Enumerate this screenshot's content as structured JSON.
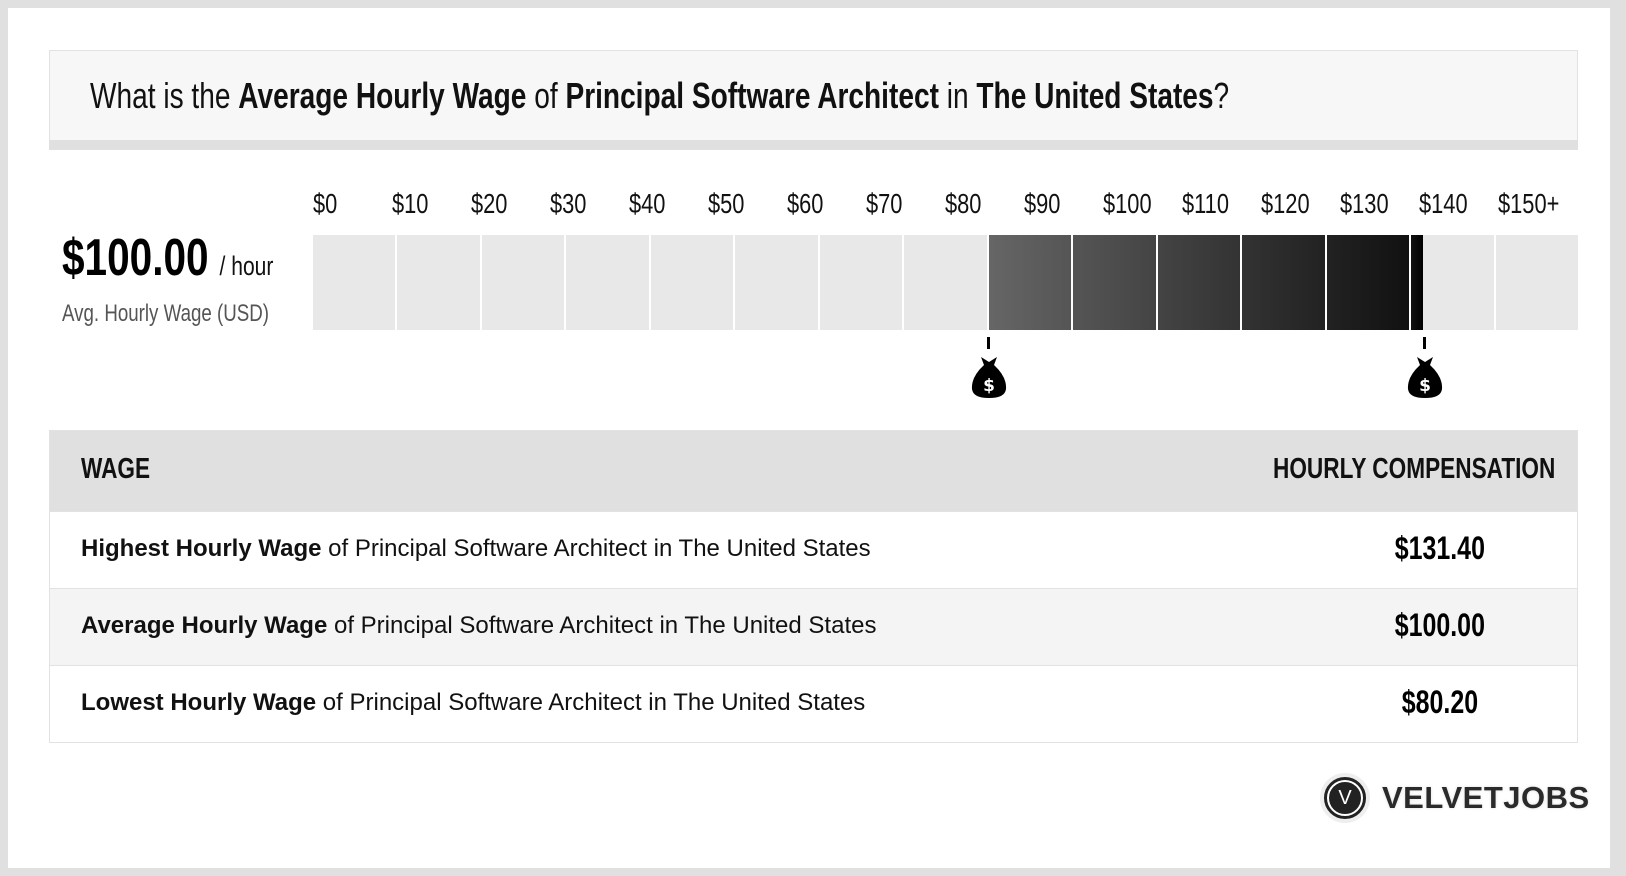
{
  "header": {
    "parts": [
      {
        "text": "What is the ",
        "bold": false
      },
      {
        "text": "Average Hourly Wage",
        "bold": true
      },
      {
        "text": " of ",
        "bold": false
      },
      {
        "text": "Principal Software Architect",
        "bold": true
      },
      {
        "text": " in ",
        "bold": false
      },
      {
        "text": "The United States",
        "bold": true
      },
      {
        "text": "?",
        "bold": false
      }
    ]
  },
  "summary": {
    "value": "$100.00",
    "unit": "/ hour",
    "label": "Avg. Hourly Wage (USD)"
  },
  "chart_data": {
    "type": "bar",
    "tick_labels": [
      "$0",
      "$10",
      "$20",
      "$30",
      "$40",
      "$50",
      "$60",
      "$70",
      "$80",
      "$90",
      "$100",
      "$110",
      "$120",
      "$130",
      "$140",
      "$150+"
    ],
    "range": [
      0,
      150
    ],
    "segment_size": 10,
    "low": 80.2,
    "average": 100.0,
    "high": 131.4,
    "colors": {
      "empty": "#e8e8e8",
      "fill_start": "#666666",
      "fill_end": "#000000"
    },
    "markers": [
      {
        "icon": "money-bag-icon",
        "value": 80.2
      },
      {
        "icon": "money-bag-icon",
        "value": 131.4
      }
    ]
  },
  "table": {
    "headers": [
      "WAGE",
      "HOURLY COMPENSATION"
    ],
    "rows": [
      {
        "bold": "Highest Hourly Wage",
        "rest": " of Principal Software Architect in The United States",
        "value": "$131.40"
      },
      {
        "bold": "Average Hourly Wage",
        "rest": " of Principal Software Architect in The United States",
        "value": "$100.00"
      },
      {
        "bold": "Lowest Hourly Wage",
        "rest": " of Principal Software Architect in The United States",
        "value": "$80.20"
      }
    ]
  },
  "logo": {
    "mark": "V",
    "text": "VELVETJOBS"
  }
}
